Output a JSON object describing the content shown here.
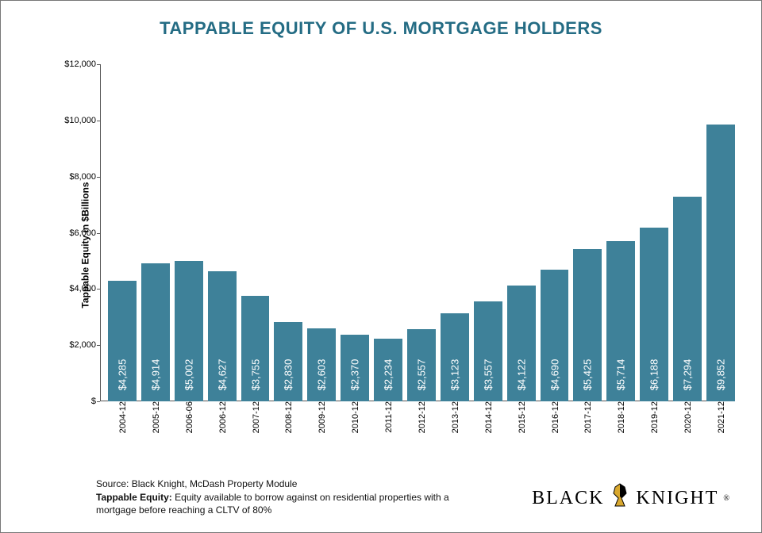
{
  "title": "TAPPABLE EQUITY OF U.S. MORTGAGE HOLDERS",
  "chart": {
    "type": "bar",
    "y_axis_title": "Tappable Equity in $Billions",
    "ylim": [
      0,
      12000
    ],
    "ytick_step": 2000,
    "ytick_prefix": "$",
    "ytick_thousands_sep": ",",
    "bar_color": "#3e8199",
    "bar_value_color": "#ffffff",
    "value_prefix": "$",
    "value_thousands_sep": ",",
    "background_color": "#ffffff",
    "axis_color": "#555555",
    "label_fontsize": 11,
    "value_fontsize": 13,
    "title_fontsize": 22,
    "title_color": "#246c84",
    "categories": [
      "2004-12",
      "2005-12",
      "2006-06",
      "2006-12",
      "2007-12",
      "2008-12",
      "2009-12",
      "2010-12",
      "2011-12",
      "2012-12",
      "2013-12",
      "2014-12",
      "2015-12",
      "2016-12",
      "2017-12",
      "2018-12",
      "2019-12",
      "2020-12",
      "2021-12"
    ],
    "values": [
      4285,
      4914,
      5002,
      4627,
      3755,
      2830,
      2603,
      2370,
      2234,
      2557,
      3123,
      3557,
      4122,
      4690,
      5425,
      5714,
      6188,
      7294,
      9852
    ]
  },
  "footer": {
    "source": "Source: Black Knight, McDash Property Module",
    "definition_term": "Tappable Equity:",
    "definition_text": "Equity available to borrow against on residential properties with a mortgage before reaching a CLTV of 80%"
  },
  "brand": {
    "left": "BLACK",
    "right": "KNIGHT",
    "registered": "®"
  }
}
